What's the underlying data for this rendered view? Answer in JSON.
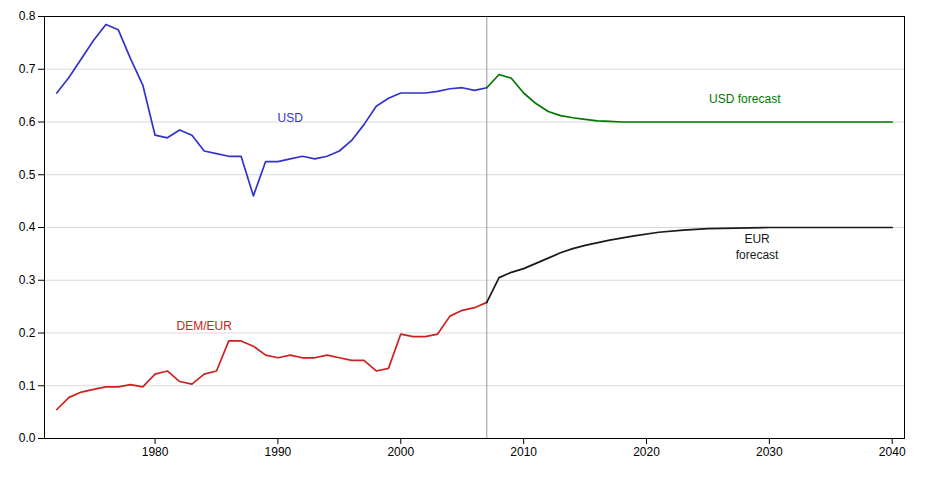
{
  "chart_data": {
    "type": "line",
    "xlim": [
      1971,
      2041
    ],
    "ylim": [
      0.0,
      0.8
    ],
    "xticks": [
      1980,
      1990,
      2000,
      2010,
      2020,
      2030,
      2040
    ],
    "yticks": [
      {
        "value": 0.0,
        "label": "0.0"
      },
      0.1,
      0.2,
      0.3,
      0.4,
      0.5,
      0.6,
      0.7,
      0.8
    ],
    "grid": "y",
    "series": [
      {
        "name": "USD",
        "color": "#3333cc",
        "x": [
          1972,
          1973,
          1974,
          1975,
          1976,
          1977,
          1978,
          1979,
          1980,
          1981,
          1982,
          1983,
          1984,
          1985,
          1986,
          1987,
          1988,
          1989,
          1990,
          1991,
          1992,
          1993,
          1994,
          1995,
          1996,
          1997,
          1998,
          1999,
          2000,
          2001,
          2002,
          2003,
          2004,
          2005,
          2006,
          2007
        ],
        "values": [
          0.655,
          0.685,
          0.72,
          0.755,
          0.785,
          0.775,
          0.72,
          0.67,
          0.575,
          0.57,
          0.585,
          0.575,
          0.545,
          0.54,
          0.535,
          0.535,
          0.46,
          0.525,
          0.525,
          0.53,
          0.535,
          0.53,
          0.535,
          0.545,
          0.565,
          0.595,
          0.63,
          0.645,
          0.655,
          0.655,
          0.655,
          0.658,
          0.663,
          0.665,
          0.66,
          0.665
        ]
      },
      {
        "name": "USD forecast",
        "color": "#007700",
        "x": [
          2007,
          2008,
          2009,
          2010,
          2011,
          2012,
          2013,
          2014,
          2015,
          2016,
          2017,
          2018,
          2019,
          2020,
          2021,
          2022,
          2023,
          2024,
          2025,
          2030,
          2035,
          2040
        ],
        "values": [
          0.665,
          0.69,
          0.683,
          0.655,
          0.635,
          0.62,
          0.612,
          0.608,
          0.605,
          0.602,
          0.601,
          0.6,
          0.6,
          0.6,
          0.6,
          0.6,
          0.6,
          0.6,
          0.6,
          0.6,
          0.6,
          0.6
        ]
      },
      {
        "name": "DEM/EUR",
        "color": "#cc2222",
        "x": [
          1972,
          1973,
          1974,
          1975,
          1976,
          1977,
          1978,
          1979,
          1980,
          1981,
          1982,
          1983,
          1984,
          1985,
          1986,
          1987,
          1988,
          1989,
          1990,
          1991,
          1992,
          1993,
          1994,
          1995,
          1996,
          1997,
          1998,
          1999,
          2000,
          2001,
          2002,
          2003,
          2004,
          2005,
          2006,
          2007
        ],
        "values": [
          0.055,
          0.078,
          0.088,
          0.093,
          0.098,
          0.098,
          0.102,
          0.098,
          0.122,
          0.128,
          0.108,
          0.103,
          0.122,
          0.128,
          0.185,
          0.185,
          0.175,
          0.158,
          0.153,
          0.158,
          0.153,
          0.153,
          0.158,
          0.153,
          0.148,
          0.148,
          0.128,
          0.133,
          0.198,
          0.193,
          0.193,
          0.198,
          0.232,
          0.243,
          0.248,
          0.258
        ]
      },
      {
        "name": "EUR\nforecast",
        "color": "#1a1a1a",
        "x": [
          2007,
          2008,
          2009,
          2010,
          2011,
          2012,
          2013,
          2014,
          2015,
          2017,
          2019,
          2021,
          2023,
          2025,
          2030,
          2035,
          2040
        ],
        "values": [
          0.258,
          0.305,
          0.315,
          0.322,
          0.332,
          0.342,
          0.352,
          0.36,
          0.366,
          0.376,
          0.384,
          0.391,
          0.395,
          0.398,
          0.4,
          0.4,
          0.4
        ]
      }
    ],
    "annotations": [
      {
        "text": "USD",
        "x": 1991,
        "y": 0.61,
        "color": "#3333cc"
      },
      {
        "text": "USD forecast",
        "x": 2028,
        "y": 0.645,
        "color": "#007700"
      },
      {
        "text": "EUR\nforecast",
        "x": 2029,
        "y": 0.365,
        "color": "#1a1a1a"
      },
      {
        "text": "DEM/EUR",
        "x": 1984,
        "y": 0.215,
        "color": "#cc2222"
      }
    ],
    "rules": [
      {
        "x": 2007,
        "color": "#999999"
      }
    ]
  }
}
